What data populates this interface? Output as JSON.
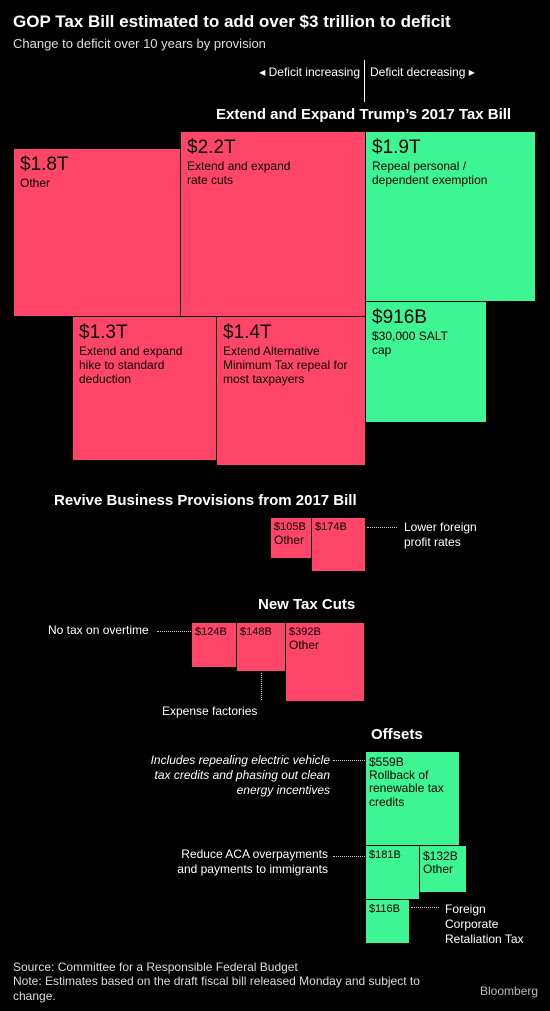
{
  "title": "GOP Tax Bill estimated to add over $3 trillion to deficit",
  "subtitle": "Change to deficit over 10 years by provision",
  "axis": {
    "left_label": "◂ Deficit increasing",
    "right_label": "Deficit decreasing ▸"
  },
  "chart_data": {
    "type": "treemap",
    "title": "GOP Tax Bill estimated to add over $3 trillion to deficit",
    "subtitle": "Change to deficit over 10 years by provision",
    "unit": "USD",
    "sections": [
      {
        "name": "Extend and Expand Trump's 2017 Tax Bill",
        "items": [
          {
            "label": "Other",
            "value_label": "$1.8T",
            "value": 1800,
            "direction": "deficit increasing"
          },
          {
            "label": "Extend and expand rate cuts",
            "value_label": "$2.2T",
            "value": 2200,
            "direction": "deficit increasing"
          },
          {
            "label": "Repeal personal / dependent exemption",
            "value_label": "$1.9T",
            "value": 1900,
            "direction": "deficit decreasing"
          },
          {
            "label": "Extend and expand hike to standard deduction",
            "value_label": "$1.3T",
            "value": 1300,
            "direction": "deficit increasing"
          },
          {
            "label": "Extend Alternative Minimum Tax repeal for most taxpayers",
            "value_label": "$1.4T",
            "value": 1400,
            "direction": "deficit increasing"
          },
          {
            "label": "$30,000 SALT cap",
            "value_label": "$916B",
            "value": 916,
            "direction": "deficit decreasing"
          }
        ]
      },
      {
        "name": "Revive Business Provisions from 2017 Bill",
        "items": [
          {
            "label": "Other",
            "value_label": "$105B",
            "value": 105,
            "direction": "deficit increasing"
          },
          {
            "label": "Lower foreign profit rates",
            "value_label": "$174B",
            "value": 174,
            "direction": "deficit increasing"
          }
        ]
      },
      {
        "name": "New Tax Cuts",
        "items": [
          {
            "label": "No tax on overtime",
            "value_label": "$124B",
            "value": 124,
            "direction": "deficit increasing"
          },
          {
            "label": "Expense factories",
            "value_label": "$148B",
            "value": 148,
            "direction": "deficit increasing"
          },
          {
            "label": "Other",
            "value_label": "$392B",
            "value": 392,
            "direction": "deficit increasing"
          }
        ]
      },
      {
        "name": "Offsets",
        "items": [
          {
            "label": "Rollback of renewable tax credits",
            "value_label": "$559B",
            "value": 559,
            "direction": "deficit decreasing"
          },
          {
            "label": "Reduce ACA overpayments and payments to immigrants",
            "value_label": "$181B",
            "value": 181,
            "direction": "deficit decreasing"
          },
          {
            "label": "Other",
            "value_label": "$132B",
            "value": 132,
            "direction": "deficit decreasing"
          },
          {
            "label": "Foreign Corporate Retaliation Tax",
            "value_label": "$116B",
            "value": 116,
            "direction": "deficit decreasing"
          }
        ]
      }
    ],
    "colors": {
      "deficit_increasing": "#ff4668",
      "deficit_decreasing": "#3ef593"
    }
  },
  "sections": {
    "s1": "Extend and Expand Trump’s 2017 Tax Bill",
    "s2": "Revive Business Provisions from 2017 Bill",
    "s3": "New Tax Cuts",
    "s4": "Offsets"
  },
  "boxes": {
    "other18": {
      "value": "$1.8T",
      "label": "Other"
    },
    "rate": {
      "value": "$2.2T",
      "label": "Extend and expand rate cuts"
    },
    "exempt": {
      "value": "$1.9T",
      "label": "Repeal personal / dependent exemption"
    },
    "stddeduct": {
      "value": "$1.3T",
      "label": "Extend and expand hike to standard deduction"
    },
    "amt": {
      "value": "$1.4T",
      "label": "Extend Alternative Minimum Tax repeal for most taxpayers"
    },
    "salt": {
      "value": "$916B",
      "label": "$30,000 SALT cap"
    },
    "biz_other": {
      "value": "$105B",
      "label": "Other"
    },
    "biz_foreign": {
      "value": "$174B"
    },
    "overtime": {
      "value": "$124B"
    },
    "factories": {
      "value": "$148B"
    },
    "newcut_other": {
      "value": "$392B",
      "label": "Other"
    },
    "renew": {
      "value": "$559B",
      "label": "Rollback of renewable tax credits"
    },
    "aca": {
      "value": "$181B"
    },
    "off_other": {
      "value": "$132B",
      "label": "Other"
    },
    "fcrt": {
      "value": "$116B"
    }
  },
  "annotations": {
    "foreign_profit": "Lower foreign profit rates",
    "overtime": "No tax on overtime",
    "factories": "Expense factories",
    "renewables": "Includes repealing electric vehicle tax credits and phasing out clean energy incentives",
    "aca": "Reduce ACA overpayments and payments to immigrants",
    "fcrt": "Foreign Corporate Retaliation Tax"
  },
  "footer": {
    "source": "Source: Committee for a Responsible Federal Budget",
    "note": "Note: Estimates based on the draft fiscal bill released Monday and subject to change."
  },
  "logo": "Bloomberg"
}
